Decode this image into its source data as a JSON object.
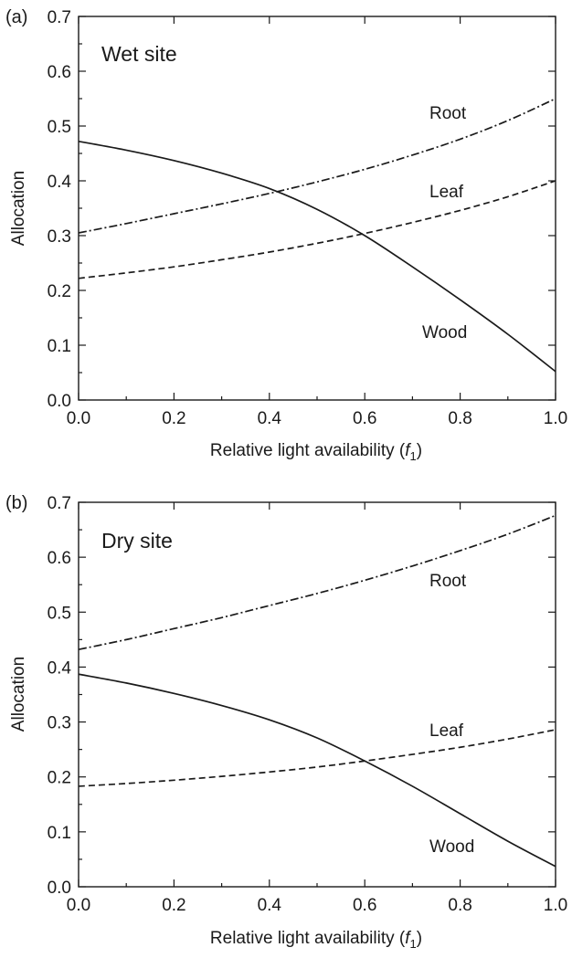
{
  "chart_data": [
    {
      "type": "line",
      "panel_label": "(a)",
      "title": "Wet site",
      "xlabel_prefix": "Relative light availability (",
      "xlabel_var": "f",
      "xlabel_sub": "1",
      "xlabel_suffix": ")",
      "ylabel": "Allocation",
      "xlim": [
        0.0,
        1.0
      ],
      "ylim": [
        0.0,
        0.7
      ],
      "xticks": [
        "0.0",
        "0.2",
        "0.4",
        "0.6",
        "0.8",
        "1.0"
      ],
      "yticks": [
        "0.0",
        "0.1",
        "0.2",
        "0.3",
        "0.4",
        "0.5",
        "0.6",
        "0.7"
      ],
      "x": [
        0.0,
        0.1,
        0.2,
        0.3,
        0.4,
        0.5,
        0.6,
        0.7,
        0.8,
        0.9,
        1.0
      ],
      "series": [
        {
          "name": "Root",
          "style": "dashdot",
          "values": [
            0.305,
            0.322,
            0.34,
            0.358,
            0.377,
            0.398,
            0.421,
            0.447,
            0.476,
            0.51,
            0.55
          ]
        },
        {
          "name": "Leaf",
          "style": "dashed",
          "values": [
            0.222,
            0.232,
            0.243,
            0.256,
            0.27,
            0.286,
            0.304,
            0.324,
            0.346,
            0.371,
            0.4
          ]
        },
        {
          "name": "Wood",
          "style": "solid",
          "values": [
            0.472,
            0.456,
            0.437,
            0.414,
            0.386,
            0.348,
            0.3,
            0.243,
            0.183,
            0.12,
            0.052
          ]
        }
      ]
    },
    {
      "type": "line",
      "panel_label": "(b)",
      "title": "Dry site",
      "xlabel_prefix": "Relative light availability (",
      "xlabel_var": "f",
      "xlabel_sub": "1",
      "xlabel_suffix": ")",
      "ylabel": "Allocation",
      "xlim": [
        0.0,
        1.0
      ],
      "ylim": [
        0.0,
        0.7
      ],
      "xticks": [
        "0.0",
        "0.2",
        "0.4",
        "0.6",
        "0.8",
        "1.0"
      ],
      "yticks": [
        "0.0",
        "0.1",
        "0.2",
        "0.3",
        "0.4",
        "0.5",
        "0.6",
        "0.7"
      ],
      "x": [
        0.0,
        0.1,
        0.2,
        0.3,
        0.4,
        0.5,
        0.6,
        0.7,
        0.8,
        0.9,
        1.0
      ],
      "series": [
        {
          "name": "Root",
          "style": "dashdot",
          "values": [
            0.432,
            0.45,
            0.47,
            0.49,
            0.512,
            0.534,
            0.558,
            0.584,
            0.612,
            0.642,
            0.676
          ]
        },
        {
          "name": "Leaf",
          "style": "dashed",
          "values": [
            0.183,
            0.188,
            0.194,
            0.201,
            0.209,
            0.218,
            0.229,
            0.241,
            0.254,
            0.269,
            0.286
          ]
        },
        {
          "name": "Wood",
          "style": "solid",
          "values": [
            0.387,
            0.371,
            0.352,
            0.33,
            0.304,
            0.271,
            0.229,
            0.183,
            0.133,
            0.083,
            0.037
          ]
        }
      ]
    }
  ]
}
